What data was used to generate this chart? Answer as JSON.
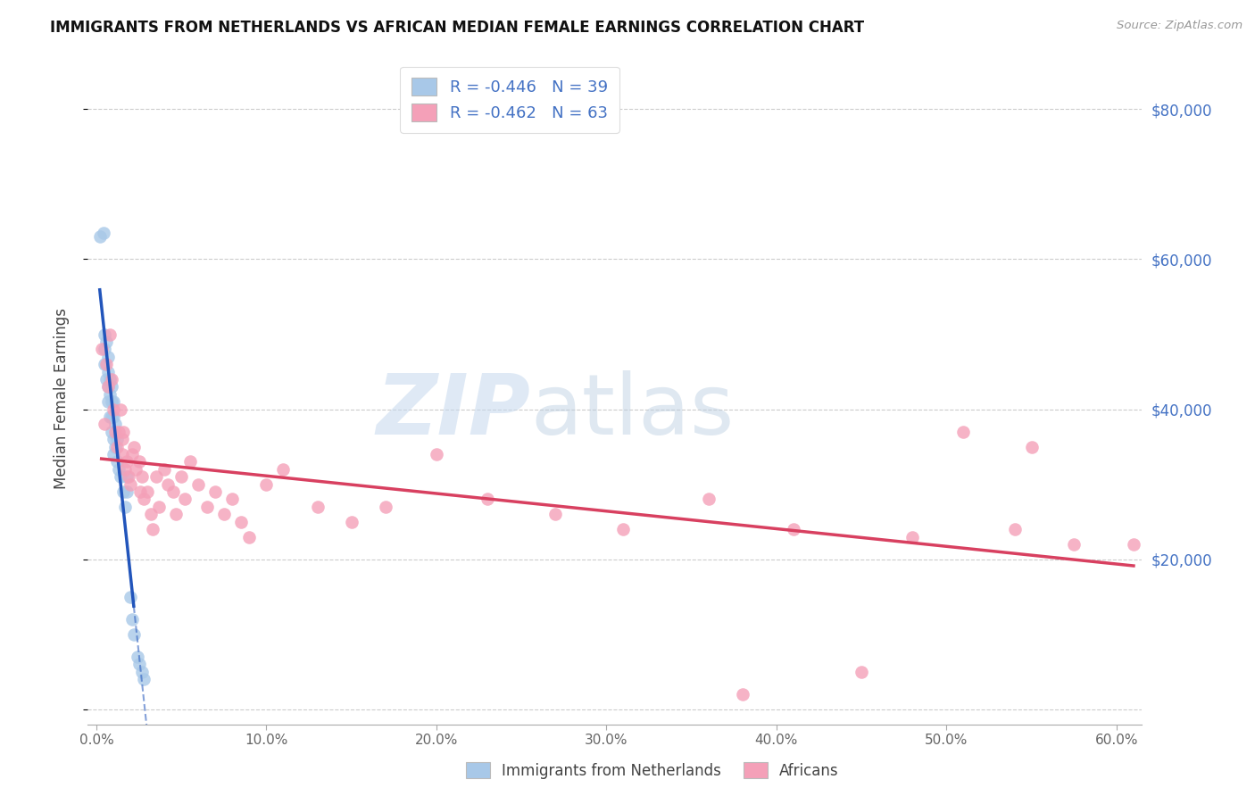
{
  "title": "IMMIGRANTS FROM NETHERLANDS VS AFRICAN MEDIAN FEMALE EARNINGS CORRELATION CHART",
  "source": "Source: ZipAtlas.com",
  "xlabel_ticks": [
    "0.0%",
    "10.0%",
    "20.0%",
    "30.0%",
    "40.0%",
    "50.0%",
    "60.0%"
  ],
  "ylabel_label": "Median Female Earnings",
  "ylabel_ticks": [
    0,
    20000,
    40000,
    60000,
    80000
  ],
  "ylabel_tick_labels": [
    "",
    "$20,000",
    "$40,000",
    "$60,000",
    "$80,000"
  ],
  "xlim": [
    -0.005,
    0.615
  ],
  "ylim": [
    -2000,
    85000
  ],
  "legend1_r": "-0.446",
  "legend1_n": "39",
  "legend2_r": "-0.462",
  "legend2_n": "63",
  "color_blue": "#a8c8e8",
  "color_blue_line": "#2255bb",
  "color_pink": "#f4a0b8",
  "color_pink_line": "#d84060",
  "color_ylabel": "#4472c4",
  "watermark_zip": "ZIP",
  "watermark_atlas": "atlas",
  "blue_scatter_x": [
    0.002,
    0.004,
    0.005,
    0.005,
    0.005,
    0.006,
    0.006,
    0.007,
    0.007,
    0.007,
    0.007,
    0.008,
    0.008,
    0.008,
    0.009,
    0.009,
    0.009,
    0.009,
    0.01,
    0.01,
    0.01,
    0.01,
    0.011,
    0.011,
    0.012,
    0.012,
    0.013,
    0.014,
    0.016,
    0.017,
    0.018,
    0.018,
    0.02,
    0.021,
    0.022,
    0.024,
    0.025,
    0.027,
    0.028
  ],
  "blue_scatter_y": [
    63000,
    63500,
    50000,
    48000,
    46000,
    49000,
    44000,
    47000,
    45000,
    43000,
    41000,
    44000,
    42000,
    39000,
    43000,
    41000,
    39000,
    37000,
    41000,
    39000,
    36000,
    34000,
    38000,
    35000,
    36000,
    33000,
    32000,
    31000,
    29000,
    27000,
    31000,
    29000,
    15000,
    12000,
    10000,
    7000,
    6000,
    5000,
    4000
  ],
  "pink_scatter_x": [
    0.003,
    0.005,
    0.006,
    0.007,
    0.008,
    0.009,
    0.01,
    0.011,
    0.012,
    0.013,
    0.014,
    0.015,
    0.015,
    0.016,
    0.017,
    0.018,
    0.019,
    0.02,
    0.021,
    0.022,
    0.023,
    0.025,
    0.026,
    0.027,
    0.028,
    0.03,
    0.032,
    0.033,
    0.035,
    0.037,
    0.04,
    0.042,
    0.045,
    0.047,
    0.05,
    0.052,
    0.055,
    0.06,
    0.065,
    0.07,
    0.075,
    0.08,
    0.085,
    0.09,
    0.1,
    0.11,
    0.13,
    0.15,
    0.17,
    0.2,
    0.23,
    0.27,
    0.31,
    0.36,
    0.41,
    0.48,
    0.51,
    0.54,
    0.575,
    0.61,
    0.45,
    0.38,
    0.55
  ],
  "pink_scatter_y": [
    48000,
    38000,
    46000,
    43000,
    50000,
    44000,
    40000,
    37000,
    35000,
    37000,
    40000,
    36000,
    34000,
    37000,
    32000,
    33000,
    31000,
    30000,
    34000,
    35000,
    32000,
    33000,
    29000,
    31000,
    28000,
    29000,
    26000,
    24000,
    31000,
    27000,
    32000,
    30000,
    29000,
    26000,
    31000,
    28000,
    33000,
    30000,
    27000,
    29000,
    26000,
    28000,
    25000,
    23000,
    30000,
    32000,
    27000,
    25000,
    27000,
    34000,
    28000,
    26000,
    24000,
    28000,
    24000,
    23000,
    37000,
    24000,
    22000,
    22000,
    5000,
    2000,
    35000
  ]
}
